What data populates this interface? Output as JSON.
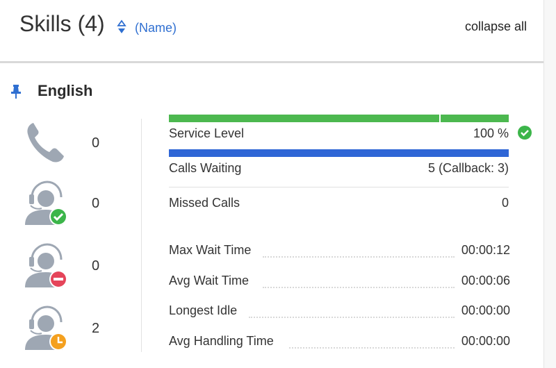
{
  "header": {
    "title": "Skills (4)",
    "sort_label": "(Name)",
    "collapse_label": "collapse all"
  },
  "skill": {
    "name": "English",
    "agents": [
      {
        "icon": "phone-icon",
        "count": "0"
      },
      {
        "icon": "agent-available-icon",
        "count": "0"
      },
      {
        "icon": "agent-unavailable-icon",
        "count": "0"
      },
      {
        "icon": "agent-idle-icon",
        "count": "2"
      }
    ],
    "service_level": {
      "label": "Service Level",
      "value": "100 %",
      "level": 1.0,
      "status_icon": "check-circle-icon"
    },
    "calls_waiting": {
      "label": "Calls Waiting",
      "value": "5 (Callback: 3)",
      "level": 1.0
    },
    "missed_calls": {
      "label": "Missed Calls",
      "value": "0"
    },
    "timings": [
      {
        "label": "Max Wait Time",
        "value": "00:00:12"
      },
      {
        "label": "Avg Wait Time",
        "value": "00:00:06"
      },
      {
        "label": "Longest Idle",
        "value": "00:00:00"
      },
      {
        "label": "Avg Handling Time",
        "value": "00:00:00"
      }
    ]
  },
  "colors": {
    "accent": "#2f6fd1",
    "service_bar": "#4cb84f",
    "calls_bar": "#2f66d6",
    "available_badge": "#3cb54a",
    "unavailable_badge": "#e5455a",
    "idle_badge": "#f4a01f",
    "icon_gray": "#9ea7b3"
  }
}
